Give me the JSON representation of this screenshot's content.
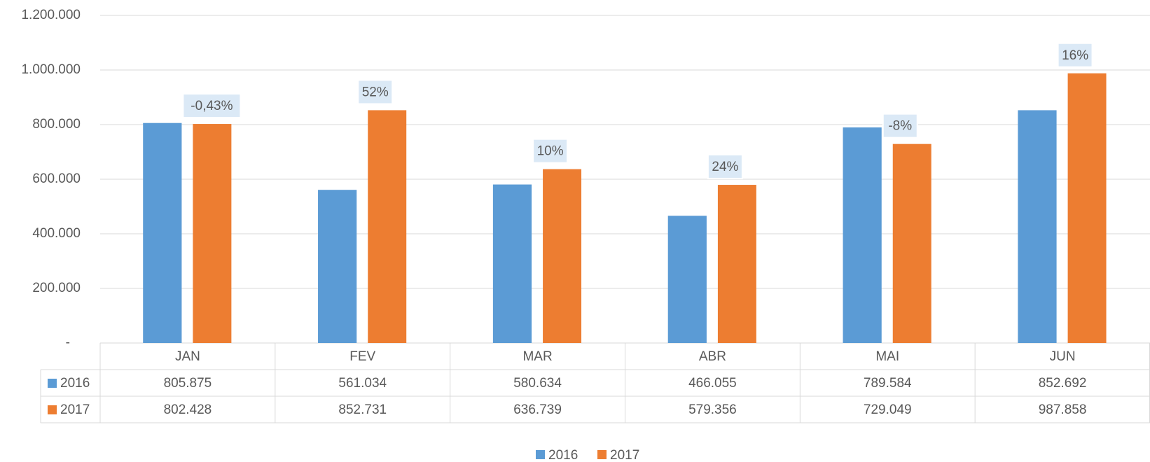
{
  "chart_data": {
    "type": "bar",
    "categories": [
      "JAN",
      "FEV",
      "MAR",
      "ABR",
      "MAI",
      "JUN"
    ],
    "series": [
      {
        "name": "2016",
        "color": "#5b9bd5",
        "values": [
          805875,
          561034,
          580634,
          466055,
          789584,
          852692
        ],
        "value_labels": [
          "805.875",
          "561.034",
          "580.634",
          "466.055",
          "789.584",
          "852.692"
        ]
      },
      {
        "name": "2017",
        "color": "#ed7d31",
        "values": [
          802428,
          852731,
          636739,
          579356,
          729049,
          987858
        ],
        "value_labels": [
          "802.428",
          "852.731",
          "636.739",
          "579.356",
          "729.049",
          "987.858"
        ],
        "annotations": [
          "-0,43%",
          "52%",
          "10%",
          "24%",
          "-8%",
          "16%"
        ]
      }
    ],
    "ylim": [
      0,
      1200000
    ],
    "yticks": [
      {
        "value": 0,
        "label": "-"
      },
      {
        "value": 200000,
        "label": "200.000"
      },
      {
        "value": 400000,
        "label": "400.000"
      },
      {
        "value": 600000,
        "label": "600.000"
      },
      {
        "value": 800000,
        "label": "800.000"
      },
      {
        "value": 1000000,
        "label": "1.000.000"
      },
      {
        "value": 1200000,
        "label": "1.200.000"
      }
    ],
    "grid": true,
    "legend": "bottom",
    "data_table": true
  }
}
